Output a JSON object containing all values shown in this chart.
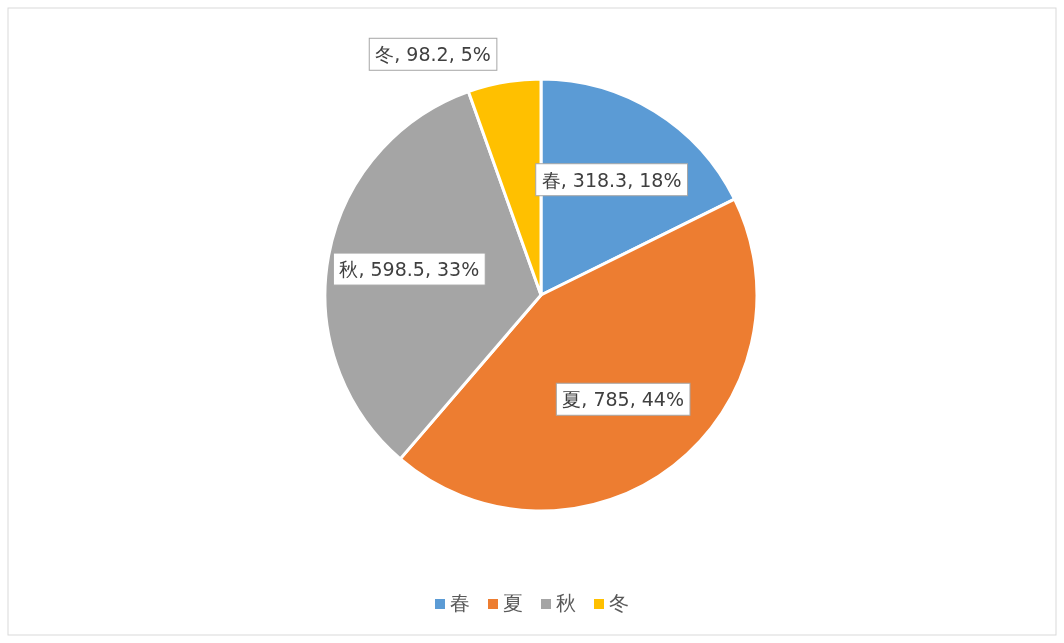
{
  "chart_data": {
    "type": "pie",
    "categories": [
      "春",
      "夏",
      "秋",
      "冬"
    ],
    "values": [
      318.3,
      785,
      598.5,
      98.2
    ],
    "colors": [
      "#5b9bd5",
      "#ed7d31",
      "#a5a5a5",
      "#ffc000"
    ],
    "value_labels": [
      "春, 318.3, 18%",
      "夏, 785, 44%",
      "秋, 598.5, 33%",
      "冬, 98.2, 5%"
    ],
    "legend": "bottom"
  }
}
